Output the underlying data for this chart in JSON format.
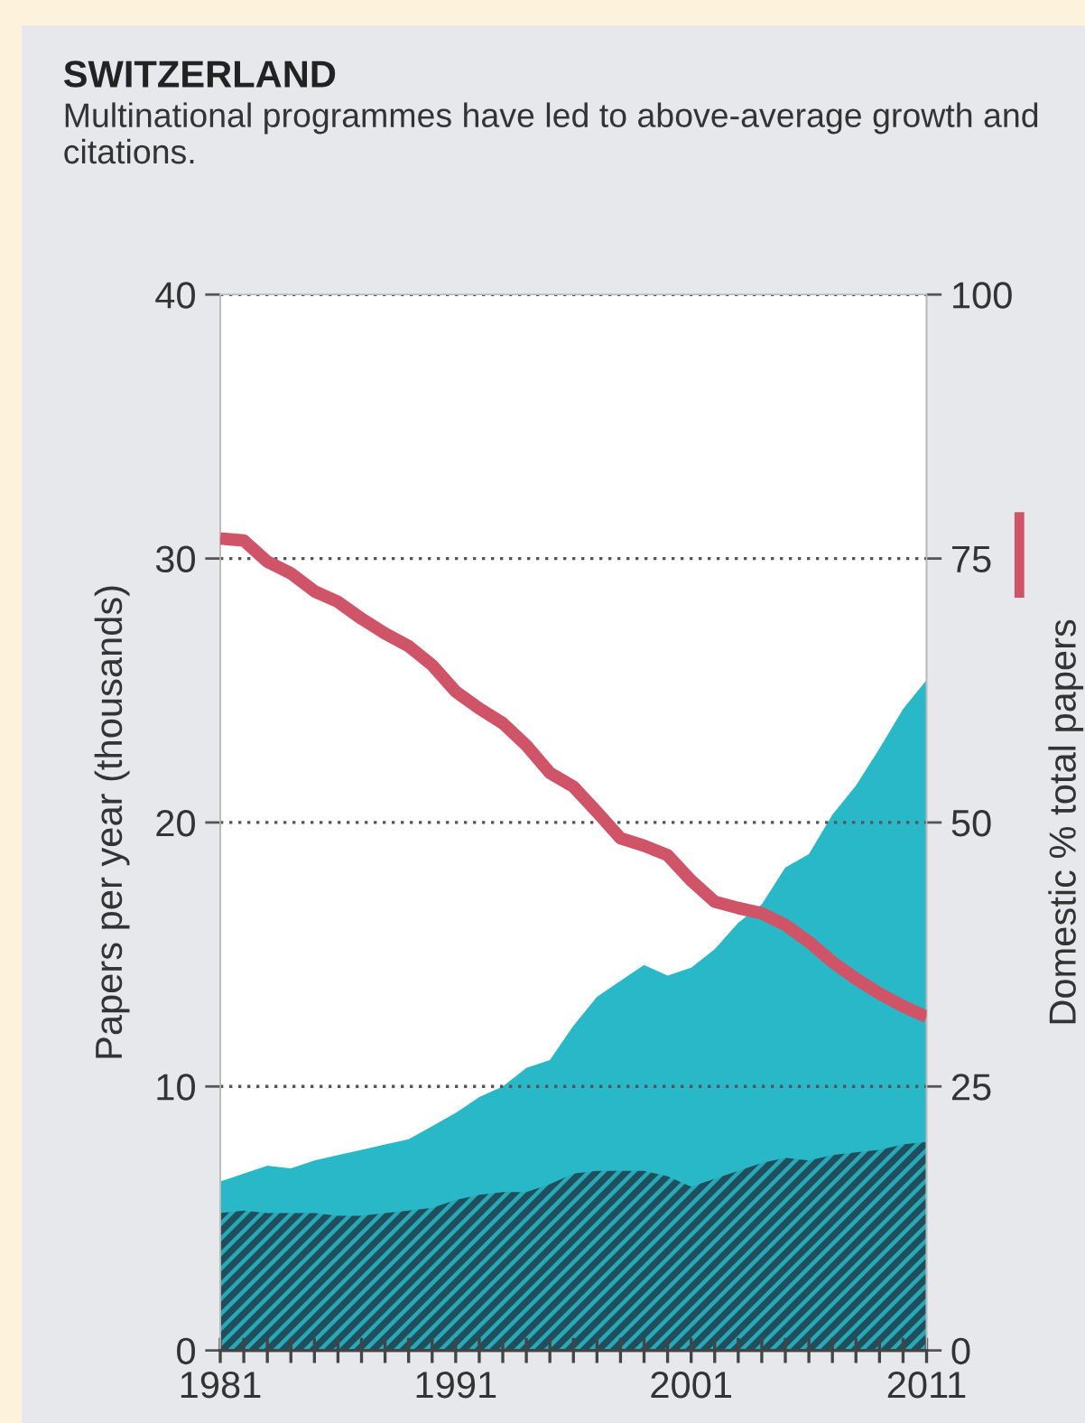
{
  "chart_data": {
    "type": "area",
    "title": "SWITZERLAND",
    "subtitle": "Multinational programmes have led to above-average growth and citations.",
    "ylabel": "Papers per year (thousands)",
    "y2label": "Domestic % total papers",
    "x": [
      1981,
      1982,
      1983,
      1984,
      1985,
      1986,
      1987,
      1988,
      1989,
      1990,
      1991,
      1992,
      1993,
      1994,
      1995,
      1996,
      1997,
      1998,
      1999,
      2000,
      2001,
      2002,
      2003,
      2004,
      2005,
      2006,
      2007,
      2008,
      2009,
      2010,
      2011
    ],
    "series": [
      {
        "color": "#29b8c8",
        "values": [
          6.4,
          6.7,
          7.0,
          6.9,
          7.2,
          7.4,
          7.6,
          7.8,
          8.0,
          8.5,
          9.0,
          9.6,
          10.0,
          10.7,
          11.0,
          12.3,
          13.4,
          14.0,
          14.6,
          14.2,
          14.5,
          15.2,
          16.2,
          16.9,
          18.3,
          18.8,
          20.3,
          21.4,
          22.8,
          24.3,
          25.4
        ]
      },
      {
        "color": "#1f4f5c",
        "values": [
          5.2,
          5.3,
          5.2,
          5.2,
          5.2,
          5.1,
          5.1,
          5.2,
          5.3,
          5.4,
          5.7,
          5.9,
          6.0,
          6.0,
          6.3,
          6.7,
          6.8,
          6.8,
          6.8,
          6.6,
          6.2,
          6.5,
          6.8,
          7.1,
          7.3,
          7.2,
          7.4,
          7.5,
          7.6,
          7.8,
          7.9
        ]
      },
      {
        "type": "line",
        "axis": "y2",
        "color": "#d05468",
        "values": [
          76.9,
          76.7,
          74.7,
          73.6,
          71.9,
          70.9,
          69.3,
          67.9,
          66.7,
          64.9,
          62.4,
          60.8,
          59.4,
          57.3,
          54.7,
          53.4,
          51.0,
          48.5,
          47.8,
          46.9,
          44.5,
          42.5,
          41.9,
          41.4,
          40.3,
          38.7,
          36.8,
          35.2,
          33.8,
          32.6,
          31.6
        ]
      }
    ],
    "xlim": [
      1981,
      2011
    ],
    "xticks": [
      1981,
      {
        "value": 1982,
        "label": null
      },
      {
        "value": 1983,
        "label": null
      },
      {
        "value": 1984,
        "label": null
      },
      {
        "value": 1985,
        "label": null
      },
      {
        "value": 1986,
        "label": null
      },
      {
        "value": 1987,
        "label": null
      },
      {
        "value": 1988,
        "label": null
      },
      {
        "value": 1989,
        "label": null
      },
      {
        "value": 1990,
        "label": null
      },
      1991,
      {
        "value": 1992,
        "label": null
      },
      {
        "value": 1993,
        "label": null
      },
      {
        "value": 1994,
        "label": null
      },
      {
        "value": 1995,
        "label": null
      },
      {
        "value": 1996,
        "label": null
      },
      {
        "value": 1997,
        "label": null
      },
      {
        "value": 1998,
        "label": null
      },
      {
        "value": 1999,
        "label": null
      },
      {
        "value": 2000,
        "label": null
      },
      2001,
      {
        "value": 2002,
        "label": null
      },
      {
        "value": 2003,
        "label": null
      },
      {
        "value": 2004,
        "label": null
      },
      {
        "value": 2005,
        "label": null
      },
      {
        "value": 2006,
        "label": null
      },
      {
        "value": 2007,
        "label": null
      },
      {
        "value": 2008,
        "label": null
      },
      {
        "value": 2009,
        "label": null
      },
      {
        "value": 2010,
        "label": null
      },
      2011
    ],
    "ylim": [
      0,
      40
    ],
    "yticks": [
      0,
      10,
      20,
      30,
      40
    ],
    "y2lim": [
      0,
      100
    ],
    "y2ticks": [
      0,
      25,
      50,
      75,
      100
    ],
    "grid": "y"
  }
}
